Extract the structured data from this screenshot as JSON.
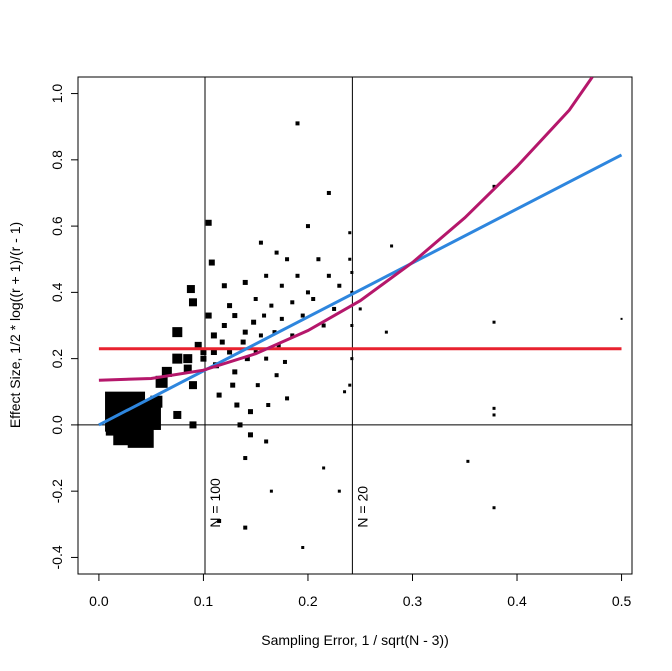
{
  "chart_data": {
    "type": "scatter",
    "xlabel": "Sampling Error, 1 / sqrt(N - 3))",
    "ylabel": "Effect Size, 1/2 * log((r + 1)/(r - 1)",
    "xlim": [
      -0.02,
      0.51
    ],
    "ylim": [
      -0.45,
      1.05
    ],
    "x_ticks": [
      0.0,
      0.1,
      0.2,
      0.3,
      0.4,
      0.5
    ],
    "x_tick_labels": [
      "0.0",
      "0.1",
      "0.2",
      "0.3",
      "0.4",
      "0.5"
    ],
    "y_ticks": [
      -0.4,
      -0.2,
      0.0,
      0.2,
      0.4,
      0.6,
      0.8,
      1.0
    ],
    "y_tick_labels": [
      "-0.4",
      "-0.2",
      "0.0",
      "0.2",
      "0.4",
      "0.6",
      "0.8",
      "1.0"
    ],
    "grid": false,
    "colors": {
      "fixed_line": "#e8222f",
      "linear_fit": "#2e86de",
      "quadratic_fit": "#b5176b",
      "points": "#000000"
    },
    "reference_lines": {
      "horizontal": [
        {
          "y": 0.0
        }
      ],
      "vertical": [
        {
          "x": 0.1015,
          "label": "N = 100"
        },
        {
          "x": 0.2425,
          "label": "N = 20"
        }
      ]
    },
    "lines": [
      {
        "style": "red",
        "x": [
          0.0,
          0.5
        ],
        "y": [
          0.23,
          0.23
        ]
      },
      {
        "style": "blue",
        "x": [
          0.0,
          0.5
        ],
        "y": [
          0.0,
          0.815
        ]
      },
      {
        "style": "magenta",
        "x": [
          0.0,
          0.05,
          0.1,
          0.15,
          0.2,
          0.25,
          0.3,
          0.35,
          0.4,
          0.45,
          0.472
        ],
        "y": [
          0.135,
          0.14,
          0.165,
          0.215,
          0.285,
          0.375,
          0.49,
          0.625,
          0.78,
          0.95,
          1.05
        ]
      }
    ],
    "points": [
      [
        0.025,
        0.04,
        40
      ],
      [
        0.035,
        0.02,
        36
      ],
      [
        0.03,
        -0.01,
        34
      ],
      [
        0.045,
        0.03,
        30
      ],
      [
        0.02,
        0.01,
        28
      ],
      [
        0.04,
        -0.03,
        26
      ],
      [
        0.05,
        0.05,
        18
      ],
      [
        0.055,
        0.07,
        12
      ],
      [
        0.06,
        0.13,
        12
      ],
      [
        0.065,
        0.16,
        10
      ],
      [
        0.075,
        0.2,
        10
      ],
      [
        0.075,
        0.28,
        10
      ],
      [
        0.088,
        0.41,
        8
      ],
      [
        0.09,
        0.37,
        8
      ],
      [
        0.085,
        0.2,
        9
      ],
      [
        0.085,
        0.17,
        8
      ],
      [
        0.09,
        0.12,
        8
      ],
      [
        0.075,
        0.03,
        8
      ],
      [
        0.09,
        0.0,
        7
      ],
      [
        0.095,
        0.24,
        7
      ],
      [
        0.1,
        0.22,
        6
      ],
      [
        0.1,
        0.2,
        6
      ],
      [
        0.105,
        0.61,
        6
      ],
      [
        0.108,
        0.49,
        6
      ],
      [
        0.105,
        0.33,
        6
      ],
      [
        0.11,
        0.27,
        6
      ],
      [
        0.11,
        0.22,
        6
      ],
      [
        0.112,
        0.18,
        6
      ],
      [
        0.115,
        0.09,
        5
      ],
      [
        0.118,
        0.25,
        5
      ],
      [
        0.12,
        0.42,
        5
      ],
      [
        0.12,
        0.3,
        5
      ],
      [
        0.125,
        0.36,
        5
      ],
      [
        0.125,
        0.22,
        5
      ],
      [
        0.128,
        0.12,
        5
      ],
      [
        0.13,
        0.33,
        5
      ],
      [
        0.13,
        0.16,
        5
      ],
      [
        0.132,
        0.06,
        5
      ],
      [
        0.135,
        0.0,
        5
      ],
      [
        0.138,
        0.25,
        5
      ],
      [
        0.14,
        0.43,
        5
      ],
      [
        0.14,
        0.28,
        5
      ],
      [
        0.142,
        0.2,
        5
      ],
      [
        0.145,
        0.04,
        5
      ],
      [
        0.145,
        -0.03,
        5
      ],
      [
        0.148,
        0.31,
        5
      ],
      [
        0.15,
        0.38,
        4
      ],
      [
        0.15,
        0.22,
        4
      ],
      [
        0.152,
        0.12,
        4
      ],
      [
        0.155,
        0.55,
        4
      ],
      [
        0.155,
        0.27,
        4
      ],
      [
        0.158,
        0.33,
        4
      ],
      [
        0.16,
        0.45,
        4
      ],
      [
        0.16,
        0.2,
        4
      ],
      [
        0.162,
        0.06,
        4
      ],
      [
        0.165,
        0.36,
        4
      ],
      [
        0.168,
        0.28,
        4
      ],
      [
        0.17,
        0.52,
        4
      ],
      [
        0.17,
        0.15,
        4
      ],
      [
        0.172,
        0.24,
        4
      ],
      [
        0.175,
        0.42,
        4
      ],
      [
        0.175,
        0.32,
        4
      ],
      [
        0.178,
        0.19,
        4
      ],
      [
        0.18,
        0.5,
        4
      ],
      [
        0.18,
        0.08,
        4
      ],
      [
        0.185,
        0.37,
        4
      ],
      [
        0.185,
        0.27,
        4
      ],
      [
        0.19,
        0.45,
        4
      ],
      [
        0.19,
        0.91,
        4
      ],
      [
        0.195,
        0.33,
        4
      ],
      [
        0.2,
        0.6,
        4
      ],
      [
        0.2,
        0.4,
        4
      ],
      [
        0.205,
        0.38,
        4
      ],
      [
        0.21,
        0.5,
        4
      ],
      [
        0.215,
        0.3,
        4
      ],
      [
        0.22,
        0.7,
        4
      ],
      [
        0.22,
        0.45,
        4
      ],
      [
        0.225,
        0.35,
        4
      ],
      [
        0.23,
        0.42,
        4
      ],
      [
        0.235,
        0.1,
        3
      ],
      [
        0.24,
        0.58,
        3
      ],
      [
        0.24,
        0.5,
        3
      ],
      [
        0.242,
        0.46,
        3
      ],
      [
        0.242,
        0.4,
        3
      ],
      [
        0.242,
        0.3,
        3
      ],
      [
        0.242,
        0.2,
        3
      ],
      [
        0.25,
        0.35,
        3
      ],
      [
        0.24,
        0.12,
        3
      ],
      [
        0.23,
        -0.2,
        3
      ],
      [
        0.215,
        -0.13,
        3
      ],
      [
        0.195,
        -0.37,
        3
      ],
      [
        0.165,
        -0.2,
        3
      ],
      [
        0.14,
        -0.31,
        4
      ],
      [
        0.115,
        -0.29,
        4
      ],
      [
        0.14,
        -0.1,
        4
      ],
      [
        0.16,
        -0.05,
        4
      ],
      [
        0.275,
        0.28,
        3
      ],
      [
        0.28,
        0.54,
        3
      ],
      [
        0.378,
        0.72,
        3
      ],
      [
        0.378,
        0.31,
        3
      ],
      [
        0.378,
        0.05,
        3
      ],
      [
        0.378,
        0.03,
        3
      ],
      [
        0.378,
        -0.25,
        3
      ],
      [
        0.353,
        -0.11,
        3
      ],
      [
        0.5,
        0.32,
        2
      ]
    ]
  }
}
